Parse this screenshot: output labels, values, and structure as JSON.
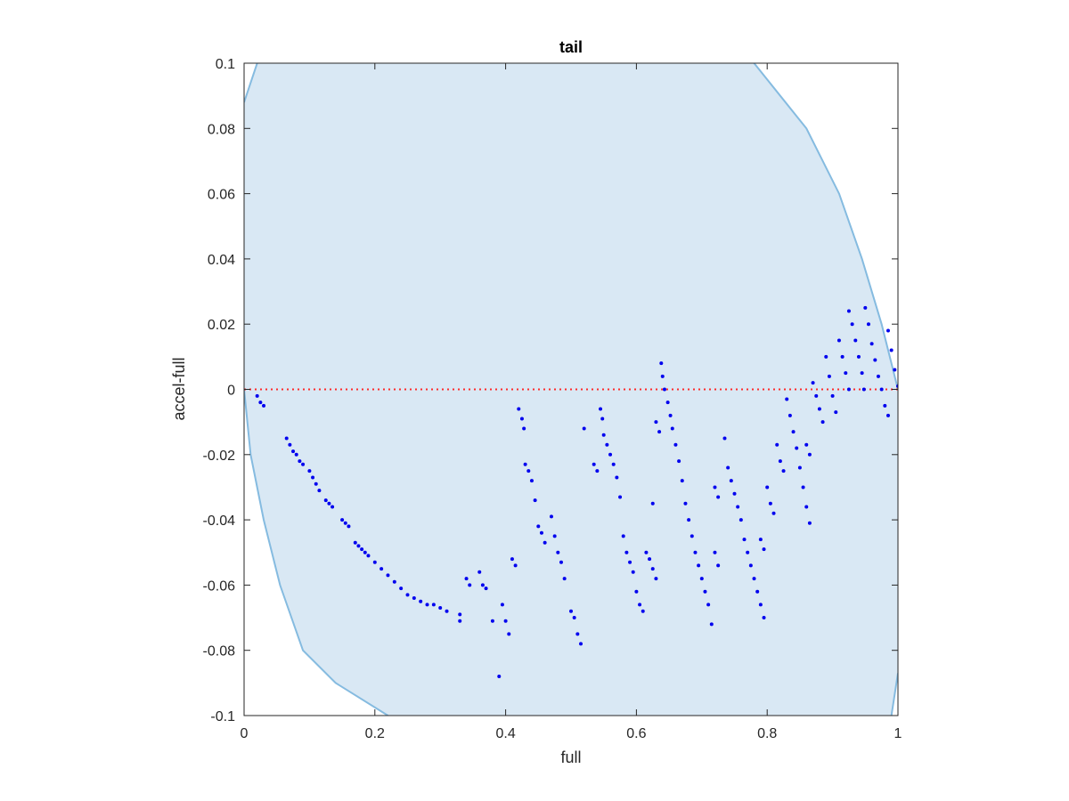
{
  "chart_data": {
    "type": "scatter",
    "title": "tail",
    "xlabel": "full",
    "ylabel": "accel-full",
    "xlim": [
      0,
      1
    ],
    "ylim": [
      -0.1,
      0.1
    ],
    "xticks": [
      0,
      0.2,
      0.4,
      0.6,
      0.8,
      1
    ],
    "xtick_labels": [
      "0",
      "0.2",
      "0.4",
      "0.6",
      "0.8",
      "1"
    ],
    "yticks": [
      -0.1,
      -0.08,
      -0.06,
      -0.04,
      -0.02,
      0,
      0.02,
      0.04,
      0.06,
      0.08,
      0.1
    ],
    "ytick_labels": [
      "-0.1",
      "-0.08",
      "-0.06",
      "-0.04",
      "-0.02",
      "0",
      "0.02",
      "0.04",
      "0.06",
      "0.08",
      "0.1"
    ],
    "grid": false,
    "colors": {
      "points": "#0000ee",
      "region_fill": "#d9e8f4",
      "region_edge": "#85bbe0",
      "reference_line": "#ff2a2a",
      "axes": "#262626"
    },
    "reference_line": {
      "y": 0,
      "style": "dotted"
    },
    "boundary_region": {
      "left_curve": [
        [
          0,
          0.088
        ],
        [
          0.02,
          0.1
        ],
        [
          0,
          0
        ],
        [
          0.01,
          -0.02
        ],
        [
          0.03,
          -0.04
        ],
        [
          0.055,
          -0.06
        ],
        [
          0.09,
          -0.08
        ],
        [
          0.14,
          -0.09
        ],
        [
          0.22,
          -0.1
        ]
      ],
      "right_curve": [
        [
          0.78,
          0.1
        ],
        [
          0.86,
          0.08
        ],
        [
          0.91,
          0.06
        ],
        [
          0.945,
          0.04
        ],
        [
          0.975,
          0.02
        ],
        [
          1,
          0
        ],
        [
          0.998,
          -0.05
        ],
        [
          0.99,
          -0.1
        ]
      ],
      "right_tail": [
        [
          1,
          -0.087
        ],
        [
          0.99,
          -0.1
        ]
      ]
    },
    "series": [
      {
        "values": [
          [
            0.02,
            -0.002
          ],
          [
            0.025,
            -0.004
          ],
          [
            0.03,
            -0.005
          ],
          [
            0.065,
            -0.015
          ],
          [
            0.07,
            -0.017
          ],
          [
            0.075,
            -0.019
          ],
          [
            0.08,
            -0.02
          ],
          [
            0.085,
            -0.022
          ],
          [
            0.09,
            -0.023
          ],
          [
            0.1,
            -0.025
          ],
          [
            0.105,
            -0.027
          ],
          [
            0.11,
            -0.029
          ],
          [
            0.115,
            -0.031
          ],
          [
            0.125,
            -0.034
          ],
          [
            0.13,
            -0.035
          ],
          [
            0.135,
            -0.036
          ],
          [
            0.15,
            -0.04
          ],
          [
            0.155,
            -0.041
          ],
          [
            0.16,
            -0.042
          ],
          [
            0.17,
            -0.047
          ],
          [
            0.175,
            -0.048
          ],
          [
            0.18,
            -0.049
          ],
          [
            0.185,
            -0.05
          ],
          [
            0.19,
            -0.051
          ],
          [
            0.2,
            -0.053
          ],
          [
            0.21,
            -0.055
          ],
          [
            0.22,
            -0.057
          ],
          [
            0.23,
            -0.059
          ],
          [
            0.24,
            -0.061
          ],
          [
            0.25,
            -0.063
          ],
          [
            0.26,
            -0.064
          ],
          [
            0.27,
            -0.065
          ],
          [
            0.28,
            -0.066
          ],
          [
            0.29,
            -0.066
          ],
          [
            0.3,
            -0.067
          ],
          [
            0.31,
            -0.068
          ],
          [
            0.33,
            -0.069
          ],
          [
            0.33,
            -0.071
          ],
          [
            0.34,
            -0.058
          ],
          [
            0.345,
            -0.06
          ],
          [
            0.36,
            -0.056
          ],
          [
            0.365,
            -0.06
          ],
          [
            0.37,
            -0.061
          ],
          [
            0.38,
            -0.071
          ],
          [
            0.395,
            -0.066
          ],
          [
            0.4,
            -0.071
          ],
          [
            0.405,
            -0.075
          ],
          [
            0.39,
            -0.088
          ],
          [
            0.41,
            -0.052
          ],
          [
            0.415,
            -0.054
          ],
          [
            0.42,
            -0.006
          ],
          [
            0.425,
            -0.009
          ],
          [
            0.428,
            -0.012
          ],
          [
            0.43,
            -0.023
          ],
          [
            0.435,
            -0.025
          ],
          [
            0.44,
            -0.028
          ],
          [
            0.445,
            -0.034
          ],
          [
            0.45,
            -0.042
          ],
          [
            0.455,
            -0.044
          ],
          [
            0.46,
            -0.047
          ],
          [
            0.47,
            -0.039
          ],
          [
            0.475,
            -0.045
          ],
          [
            0.48,
            -0.05
          ],
          [
            0.485,
            -0.053
          ],
          [
            0.49,
            -0.058
          ],
          [
            0.5,
            -0.068
          ],
          [
            0.505,
            -0.07
          ],
          [
            0.51,
            -0.075
          ],
          [
            0.515,
            -0.078
          ],
          [
            0.52,
            -0.012
          ],
          [
            0.535,
            -0.023
          ],
          [
            0.54,
            -0.025
          ],
          [
            0.545,
            -0.006
          ],
          [
            0.548,
            -0.009
          ],
          [
            0.55,
            -0.014
          ],
          [
            0.555,
            -0.017
          ],
          [
            0.56,
            -0.02
          ],
          [
            0.565,
            -0.023
          ],
          [
            0.57,
            -0.027
          ],
          [
            0.575,
            -0.033
          ],
          [
            0.58,
            -0.045
          ],
          [
            0.585,
            -0.05
          ],
          [
            0.59,
            -0.053
          ],
          [
            0.595,
            -0.056
          ],
          [
            0.6,
            -0.062
          ],
          [
            0.605,
            -0.066
          ],
          [
            0.61,
            -0.068
          ],
          [
            0.615,
            -0.05
          ],
          [
            0.62,
            -0.052
          ],
          [
            0.625,
            -0.055
          ],
          [
            0.63,
            -0.058
          ],
          [
            0.625,
            -0.035
          ],
          [
            0.63,
            -0.01
          ],
          [
            0.635,
            -0.013
          ],
          [
            0.638,
            0.008
          ],
          [
            0.64,
            0.004
          ],
          [
            0.643,
            0.0
          ],
          [
            0.648,
            -0.004
          ],
          [
            0.652,
            -0.008
          ],
          [
            0.655,
            -0.012
          ],
          [
            0.66,
            -0.017
          ],
          [
            0.665,
            -0.022
          ],
          [
            0.67,
            -0.028
          ],
          [
            0.675,
            -0.035
          ],
          [
            0.68,
            -0.04
          ],
          [
            0.685,
            -0.045
          ],
          [
            0.69,
            -0.05
          ],
          [
            0.695,
            -0.054
          ],
          [
            0.7,
            -0.058
          ],
          [
            0.705,
            -0.062
          ],
          [
            0.71,
            -0.066
          ],
          [
            0.715,
            -0.072
          ],
          [
            0.72,
            -0.03
          ],
          [
            0.725,
            -0.033
          ],
          [
            0.735,
            -0.015
          ],
          [
            0.74,
            -0.024
          ],
          [
            0.745,
            -0.028
          ],
          [
            0.75,
            -0.032
          ],
          [
            0.755,
            -0.036
          ],
          [
            0.76,
            -0.04
          ],
          [
            0.765,
            -0.046
          ],
          [
            0.77,
            -0.05
          ],
          [
            0.775,
            -0.054
          ],
          [
            0.78,
            -0.058
          ],
          [
            0.785,
            -0.062
          ],
          [
            0.79,
            -0.066
          ],
          [
            0.795,
            -0.07
          ],
          [
            0.72,
            -0.05
          ],
          [
            0.725,
            -0.054
          ],
          [
            0.79,
            -0.046
          ],
          [
            0.795,
            -0.049
          ],
          [
            0.8,
            -0.03
          ],
          [
            0.805,
            -0.035
          ],
          [
            0.81,
            -0.038
          ],
          [
            0.815,
            -0.017
          ],
          [
            0.82,
            -0.022
          ],
          [
            0.825,
            -0.025
          ],
          [
            0.83,
            -0.003
          ],
          [
            0.835,
            -0.008
          ],
          [
            0.84,
            -0.013
          ],
          [
            0.845,
            -0.018
          ],
          [
            0.85,
            -0.024
          ],
          [
            0.855,
            -0.03
          ],
          [
            0.86,
            -0.036
          ],
          [
            0.865,
            -0.041
          ],
          [
            0.86,
            -0.017
          ],
          [
            0.865,
            -0.02
          ],
          [
            0.87,
            0.002
          ],
          [
            0.875,
            -0.002
          ],
          [
            0.88,
            -0.006
          ],
          [
            0.885,
            -0.01
          ],
          [
            0.89,
            0.01
          ],
          [
            0.895,
            0.004
          ],
          [
            0.9,
            -0.002
          ],
          [
            0.905,
            -0.007
          ],
          [
            0.91,
            0.015
          ],
          [
            0.915,
            0.01
          ],
          [
            0.92,
            0.005
          ],
          [
            0.925,
            0.0
          ],
          [
            0.925,
            0.024
          ],
          [
            0.93,
            0.02
          ],
          [
            0.935,
            0.015
          ],
          [
            0.94,
            0.01
          ],
          [
            0.945,
            0.005
          ],
          [
            0.948,
            0.0
          ],
          [
            0.95,
            0.025
          ],
          [
            0.955,
            0.02
          ],
          [
            0.96,
            0.014
          ],
          [
            0.965,
            0.009
          ],
          [
            0.97,
            0.004
          ],
          [
            0.975,
            0.0
          ],
          [
            0.98,
            -0.005
          ],
          [
            0.985,
            -0.008
          ],
          [
            0.985,
            0.018
          ],
          [
            0.99,
            0.012
          ],
          [
            0.995,
            0.006
          ],
          [
            1.0,
            0.001
          ]
        ]
      }
    ]
  }
}
